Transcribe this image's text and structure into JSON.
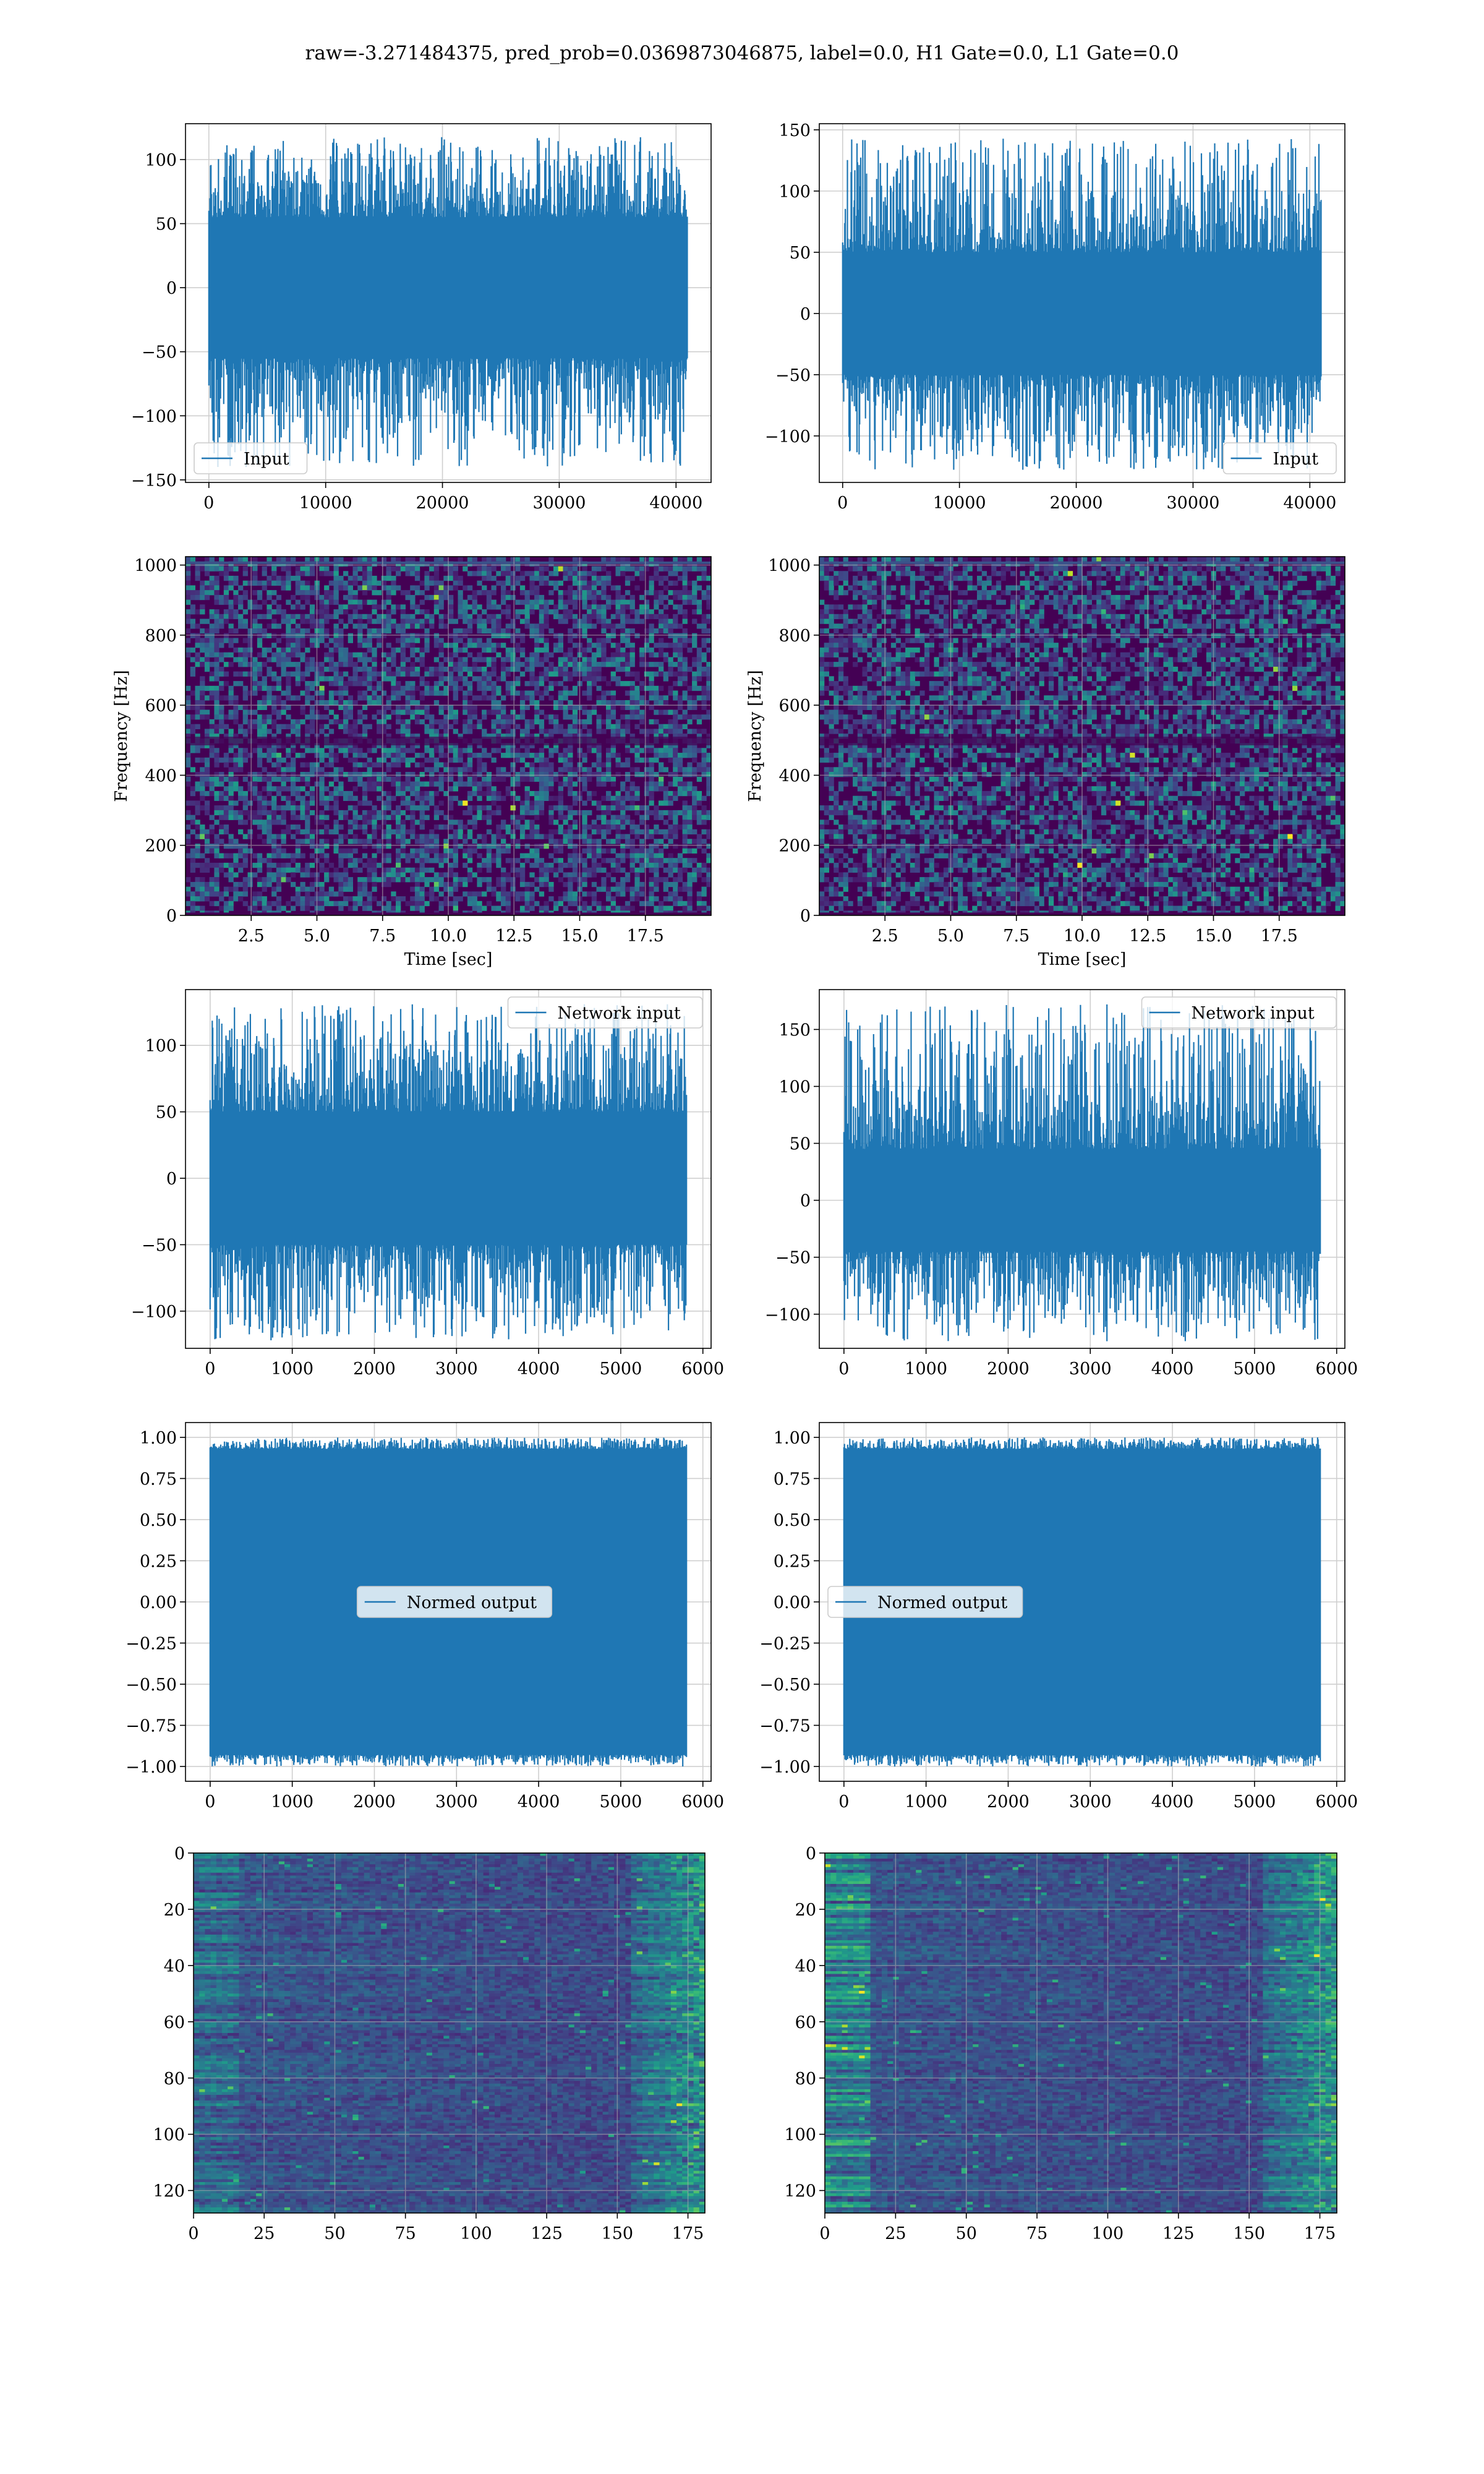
{
  "title": "raw=-3.271484375, pred_prob=0.0369873046875, label=0.0, H1 Gate=0.0, L1 Gate=0.0",
  "colors": {
    "line": "#1f77b4",
    "grid": "#b0b0b0",
    "viridis_dark": "#440154",
    "viridis_mid": "#3b528b",
    "viridis_teal": "#21918c",
    "viridis_green": "#5ec962",
    "viridis_yellow": "#fde725"
  },
  "chart_data": [
    {
      "id": "r1-left",
      "type": "line",
      "title": "",
      "xlabel": "",
      "ylabel": "",
      "xlim": [
        -2000,
        43000
      ],
      "ylim": [
        -152,
        128
      ],
      "xticks": [
        0,
        10000,
        20000,
        30000,
        40000
      ],
      "xtick_labels": [
        "0",
        "10000",
        "20000",
        "30000",
        "40000"
      ],
      "yticks": [
        -150,
        -100,
        -50,
        0,
        50,
        100
      ],
      "ytick_labels": [
        "−150",
        "−100",
        "−50",
        "0",
        "50",
        "100"
      ],
      "grid": true,
      "legend": "lower-left",
      "series": [
        {
          "name": "Input",
          "x_range": [
            0,
            40960
          ],
          "core_amplitude": [
            -55,
            55
          ],
          "envelope": [
            -140,
            118
          ]
        }
      ]
    },
    {
      "id": "r1-right",
      "type": "line",
      "title": "",
      "xlabel": "",
      "ylabel": "",
      "xlim": [
        -2000,
        43000
      ],
      "ylim": [
        -138,
        155
      ],
      "xticks": [
        0,
        10000,
        20000,
        30000,
        40000
      ],
      "xtick_labels": [
        "0",
        "10000",
        "20000",
        "30000",
        "40000"
      ],
      "yticks": [
        -100,
        -50,
        0,
        50,
        100,
        150
      ],
      "ytick_labels": [
        "−100",
        "−50",
        "0",
        "50",
        "100",
        "150"
      ],
      "grid": true,
      "legend": "lower-right",
      "series": [
        {
          "name": "Input",
          "x_range": [
            0,
            40960
          ],
          "core_amplitude": [
            -50,
            50
          ],
          "envelope": [
            -128,
            143
          ]
        }
      ]
    },
    {
      "id": "r2-left",
      "type": "heatmap",
      "title": "",
      "xlabel": "Time [sec]",
      "ylabel": "Frequency [Hz]",
      "xlim": [
        0,
        20
      ],
      "ylim": [
        0,
        1024
      ],
      "xticks": [
        2.5,
        5.0,
        7.5,
        10.0,
        12.5,
        15.0,
        17.5
      ],
      "xtick_labels": [
        "2.5",
        "5.0",
        "7.5",
        "10.0",
        "12.5",
        "15.0",
        "17.5"
      ],
      "yticks": [
        0,
        200,
        400,
        600,
        800,
        1000
      ],
      "ytick_labels": [
        "0",
        "200",
        "400",
        "600",
        "800",
        "1000"
      ],
      "grid": true,
      "colormap": "viridis",
      "texture": "noise"
    },
    {
      "id": "r2-right",
      "type": "heatmap",
      "title": "",
      "xlabel": "Time [sec]",
      "ylabel": "Frequency [Hz]",
      "xlim": [
        0,
        20
      ],
      "ylim": [
        0,
        1024
      ],
      "xticks": [
        2.5,
        5.0,
        7.5,
        10.0,
        12.5,
        15.0,
        17.5
      ],
      "xtick_labels": [
        "2.5",
        "5.0",
        "7.5",
        "10.0",
        "12.5",
        "15.0",
        "17.5"
      ],
      "yticks": [
        0,
        200,
        400,
        600,
        800,
        1000
      ],
      "ytick_labels": [
        "0",
        "200",
        "400",
        "600",
        "800",
        "1000"
      ],
      "grid": true,
      "colormap": "viridis",
      "texture": "noise"
    },
    {
      "id": "r3-left",
      "type": "line",
      "title": "",
      "xlabel": "",
      "ylabel": "",
      "xlim": [
        -300,
        6100
      ],
      "ylim": [
        -128,
        142
      ],
      "xticks": [
        0,
        1000,
        2000,
        3000,
        4000,
        5000,
        6000
      ],
      "xtick_labels": [
        "0",
        "1000",
        "2000",
        "3000",
        "4000",
        "5000",
        "6000"
      ],
      "yticks": [
        -100,
        -50,
        0,
        50,
        100
      ],
      "ytick_labels": [
        "−100",
        "−50",
        "0",
        "50",
        "100"
      ],
      "grid": true,
      "legend": "top-right",
      "series": [
        {
          "name": "Network input",
          "x_range": [
            0,
            5800
          ],
          "core_amplitude": [
            -50,
            50
          ],
          "envelope": [
            -122,
            131
          ]
        }
      ]
    },
    {
      "id": "r3-right",
      "type": "line",
      "title": "",
      "xlabel": "",
      "ylabel": "",
      "xlim": [
        -300,
        6100
      ],
      "ylim": [
        -130,
        185
      ],
      "xticks": [
        0,
        1000,
        2000,
        3000,
        4000,
        5000,
        6000
      ],
      "xtick_labels": [
        "0",
        "1000",
        "2000",
        "3000",
        "4000",
        "5000",
        "6000"
      ],
      "yticks": [
        -100,
        -50,
        0,
        50,
        100,
        150
      ],
      "ytick_labels": [
        "−100",
        "−50",
        "0",
        "50",
        "100",
        "150"
      ],
      "grid": true,
      "legend": "top-right",
      "series": [
        {
          "name": "Network input",
          "x_range": [
            0,
            5800
          ],
          "core_amplitude": [
            -45,
            45
          ],
          "envelope": [
            -124,
            172
          ]
        }
      ]
    },
    {
      "id": "r4-left",
      "type": "line",
      "title": "",
      "xlabel": "",
      "ylabel": "",
      "xlim": [
        -300,
        6100
      ],
      "ylim": [
        -1.09,
        1.09
      ],
      "xticks": [
        0,
        1000,
        2000,
        3000,
        4000,
        5000,
        6000
      ],
      "xtick_labels": [
        "0",
        "1000",
        "2000",
        "3000",
        "4000",
        "5000",
        "6000"
      ],
      "yticks": [
        -1.0,
        -0.75,
        -0.5,
        -0.25,
        0.0,
        0.25,
        0.5,
        0.75,
        1.0
      ],
      "ytick_labels": [
        "−1.00",
        "−0.75",
        "−0.50",
        "−0.25",
        "0.00",
        "0.25",
        "0.50",
        "0.75",
        "1.00"
      ],
      "grid": true,
      "legend": "center",
      "series": [
        {
          "name": "Normed output",
          "x_range": [
            0,
            5800
          ],
          "core_amplitude": [
            -0.93,
            0.93
          ],
          "envelope": [
            -1.0,
            1.0
          ]
        }
      ]
    },
    {
      "id": "r4-right",
      "type": "line",
      "title": "",
      "xlabel": "",
      "ylabel": "",
      "xlim": [
        -300,
        6100
      ],
      "ylim": [
        -1.09,
        1.09
      ],
      "xticks": [
        0,
        1000,
        2000,
        3000,
        4000,
        5000,
        6000
      ],
      "xtick_labels": [
        "0",
        "1000",
        "2000",
        "3000",
        "4000",
        "5000",
        "6000"
      ],
      "yticks": [
        -1.0,
        -0.75,
        -0.5,
        -0.25,
        0.0,
        0.25,
        0.5,
        0.75,
        1.0
      ],
      "ytick_labels": [
        "−1.00",
        "−0.75",
        "−0.50",
        "−0.25",
        "0.00",
        "0.25",
        "0.50",
        "0.75",
        "1.00"
      ],
      "grid": true,
      "legend": "center-left",
      "series": [
        {
          "name": "Normed output",
          "x_range": [
            0,
            5800
          ],
          "core_amplitude": [
            -0.93,
            0.93
          ],
          "envelope": [
            -1.0,
            1.0
          ]
        }
      ]
    },
    {
      "id": "r5-left",
      "type": "heatmap",
      "title": "",
      "xlabel": "",
      "ylabel": "",
      "xlim": [
        0,
        181
      ],
      "ylim": [
        128,
        0
      ],
      "xticks": [
        0,
        25,
        50,
        75,
        100,
        125,
        150,
        175
      ],
      "xtick_labels": [
        "0",
        "25",
        "50",
        "75",
        "100",
        "125",
        "150",
        "175"
      ],
      "yticks": [
        0,
        20,
        40,
        60,
        80,
        100,
        120
      ],
      "ytick_labels": [
        "0",
        "20",
        "40",
        "60",
        "80",
        "100",
        "120"
      ],
      "grid": true,
      "colormap": "viridis",
      "texture": "banded"
    },
    {
      "id": "r5-right",
      "type": "heatmap",
      "title": "",
      "xlabel": "",
      "ylabel": "",
      "xlim": [
        0,
        181
      ],
      "ylim": [
        128,
        0
      ],
      "xticks": [
        0,
        25,
        50,
        75,
        100,
        125,
        150,
        175
      ],
      "xtick_labels": [
        "0",
        "25",
        "50",
        "75",
        "100",
        "125",
        "150",
        "175"
      ],
      "yticks": [
        0,
        20,
        40,
        60,
        80,
        100,
        120
      ],
      "ytick_labels": [
        "0",
        "20",
        "40",
        "60",
        "80",
        "100",
        "120"
      ],
      "grid": true,
      "colormap": "viridis",
      "texture": "banded"
    }
  ]
}
